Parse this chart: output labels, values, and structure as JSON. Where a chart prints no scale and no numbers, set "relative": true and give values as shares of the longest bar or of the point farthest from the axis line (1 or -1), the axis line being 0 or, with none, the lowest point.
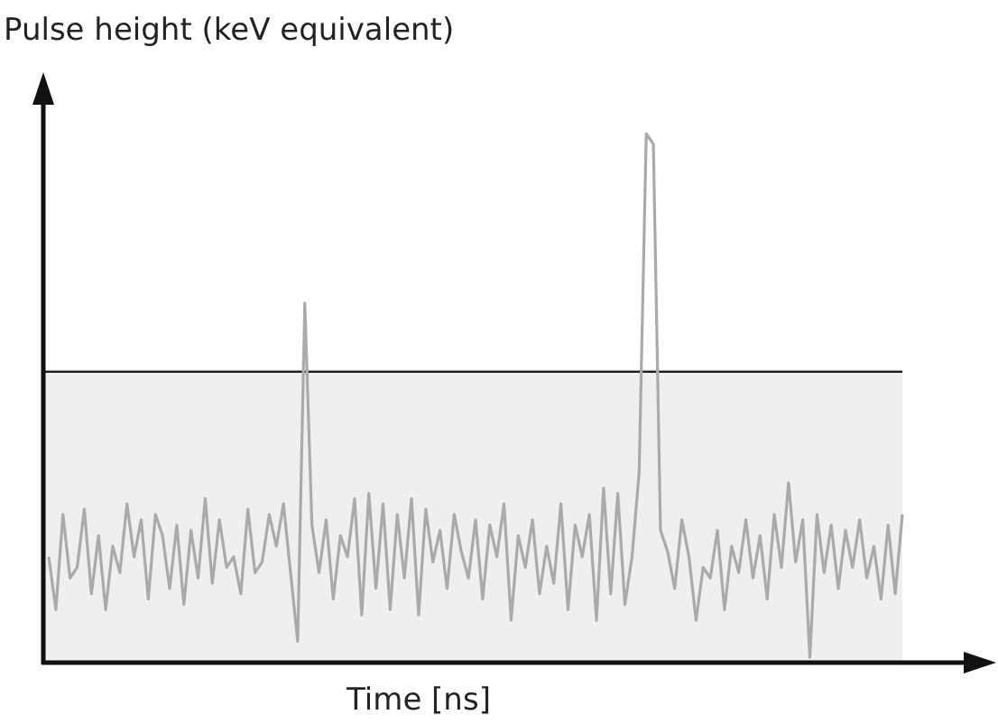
{
  "chart_data": {
    "type": "line",
    "relative": true,
    "xlabel": "Time [ns]",
    "ylabel": "Pulse height (keV equivalent)",
    "categories": [
      null,
      null,
      null,
      null,
      null,
      null,
      null,
      null,
      null,
      null,
      null,
      null,
      null,
      null,
      null,
      null,
      null,
      null,
      null,
      null,
      null,
      null,
      null,
      null,
      null,
      null,
      null,
      null,
      null,
      null,
      null,
      null,
      null,
      null,
      null,
      null,
      null,
      null,
      null,
      null,
      null,
      null,
      null,
      null,
      null,
      null,
      null,
      null,
      null,
      null,
      null,
      null,
      null,
      null,
      null,
      null,
      null,
      null,
      null,
      null,
      null,
      null,
      null,
      null,
      null,
      null,
      null,
      null,
      null,
      null,
      null,
      null,
      null,
      null,
      null,
      null,
      null,
      null,
      null,
      null,
      null,
      null,
      null,
      null,
      null,
      null,
      null,
      null,
      null,
      null,
      null,
      null,
      null,
      null,
      null,
      null,
      null,
      null,
      null,
      null,
      null,
      null,
      null,
      null,
      null,
      null,
      null,
      null,
      null,
      null,
      null,
      null,
      null,
      null,
      null,
      null,
      null,
      null,
      null,
      null,
      null
    ],
    "series": [
      {
        "color": "#aaaaaa",
        "values": [
          0.2,
          0.1,
          0.28,
          0.16,
          0.18,
          0.29,
          0.13,
          0.24,
          0.1,
          0.22,
          0.17,
          0.3,
          0.2,
          0.27,
          0.12,
          0.28,
          0.24,
          0.14,
          0.26,
          0.11,
          0.25,
          0.16,
          0.31,
          0.15,
          0.27,
          0.18,
          0.2,
          0.13,
          0.29,
          0.17,
          0.19,
          0.28,
          0.22,
          0.3,
          0.17,
          0.04,
          0.68,
          0.26,
          0.17,
          0.27,
          0.12,
          0.24,
          0.2,
          0.31,
          0.09,
          0.32,
          0.14,
          0.3,
          0.1,
          0.28,
          0.16,
          0.31,
          0.09,
          0.29,
          0.19,
          0.25,
          0.14,
          0.28,
          0.21,
          0.16,
          0.27,
          0.12,
          0.26,
          0.2,
          0.3,
          0.08,
          0.24,
          0.18,
          0.27,
          0.13,
          0.22,
          0.15,
          0.3,
          0.1,
          0.26,
          0.2,
          0.28,
          0.08,
          0.33,
          0.13,
          0.32,
          0.11,
          0.2,
          0.36,
          1.0,
          0.98,
          0.25,
          0.21,
          0.14,
          0.27,
          0.2,
          0.08,
          0.18,
          0.16,
          0.25,
          0.1,
          0.22,
          0.17,
          0.27,
          0.16,
          0.24,
          0.12,
          0.28,
          0.18,
          0.34,
          0.19,
          0.27,
          0.01,
          0.28,
          0.17,
          0.26,
          0.14,
          0.25,
          0.18,
          0.27,
          0.16,
          0.22,
          0.12,
          0.26,
          0.13,
          0.28
        ]
      }
    ],
    "ref_lines": [
      {
        "axis": "y",
        "value": 0.55,
        "color": "#222222"
      }
    ],
    "bands": [
      {
        "axis": "y",
        "from": 0,
        "to": 0.55,
        "color": "#efefef"
      }
    ],
    "marker": "none",
    "line_style": "solid",
    "tick_labels": false
  }
}
